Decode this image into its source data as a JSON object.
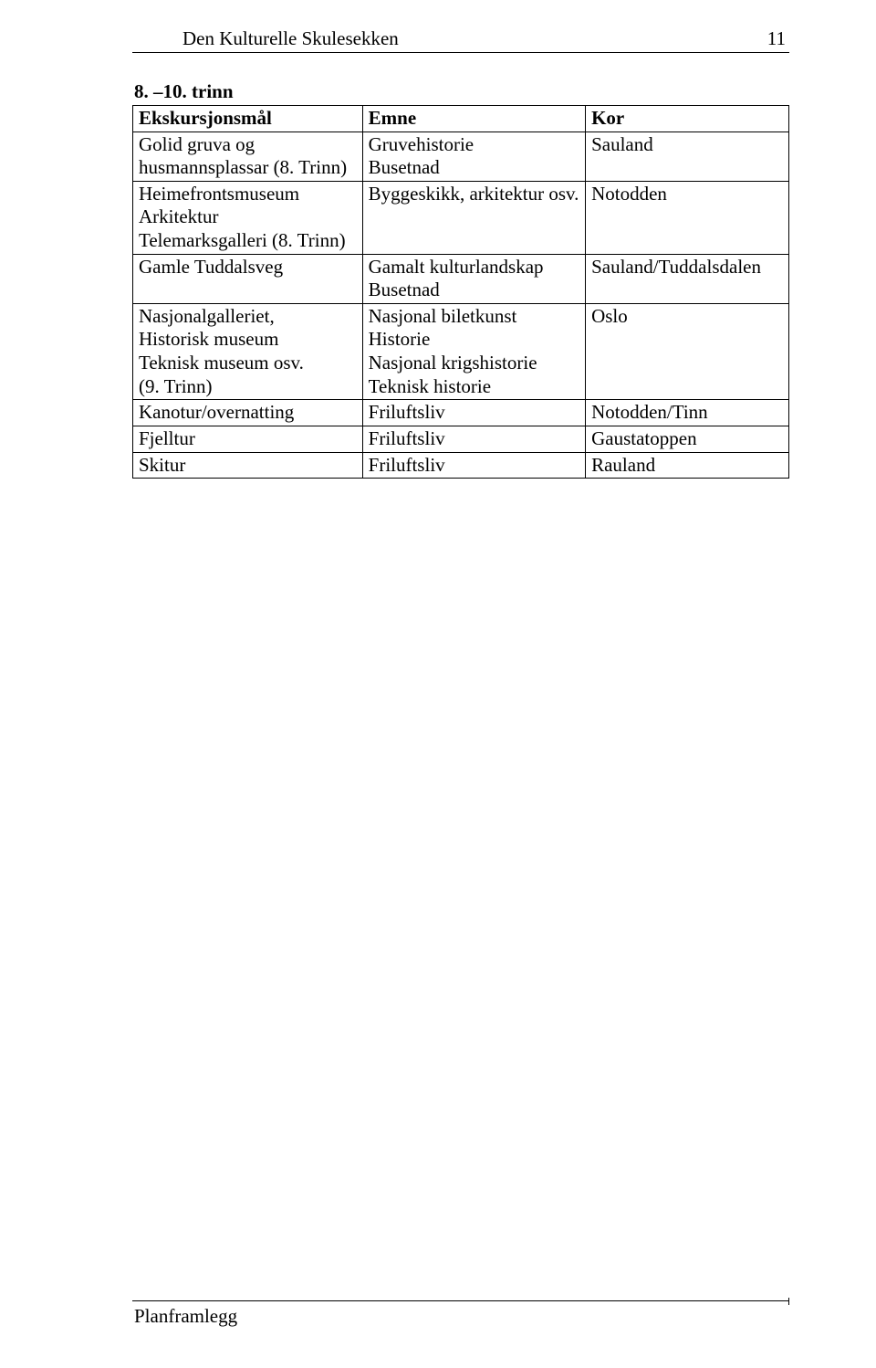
{
  "header": {
    "title": "Den Kulturelle Skulesekken",
    "page_number": "11"
  },
  "section_title": "8. –10. trinn",
  "table": {
    "columns": [
      "Ekskursjonsmål",
      "Emne",
      "Kor"
    ],
    "rows": [
      {
        "c1": "Golid gruva og husmannsplassar (8. Trinn)",
        "c2": "Gruvehistorie\nBusetnad",
        "c3": "Sauland"
      },
      {
        "c1": "Heimefrontsmuseum\nArkitektur\nTelemarksgalleri (8. Trinn)",
        "c2": "Byggeskikk, arkitektur osv.",
        "c3": "Notodden"
      },
      {
        "c1": "Gamle Tuddalsveg",
        "c2": "Gamalt kulturlandskap\nBusetnad",
        "c3": "Sauland/Tuddalsdalen"
      },
      {
        "c1": "Nasjonalgalleriet,\nHistorisk museum\nTeknisk museum osv.\n(9. Trinn)",
        "c2": "Nasjonal biletkunst\nHistorie\nNasjonal krigshistorie\nTeknisk historie",
        "c3": "Oslo"
      },
      {
        "c1": "Kanotur/overnatting",
        "c2": "Friluftsliv",
        "c3": "Notodden/Tinn"
      },
      {
        "c1": "Fjelltur",
        "c2": "Friluftsliv",
        "c3": "Gaustatoppen"
      },
      {
        "c1": "Skitur",
        "c2": "Friluftsliv",
        "c3": "Rauland"
      }
    ]
  },
  "footer": {
    "text": "Planframlegg"
  }
}
